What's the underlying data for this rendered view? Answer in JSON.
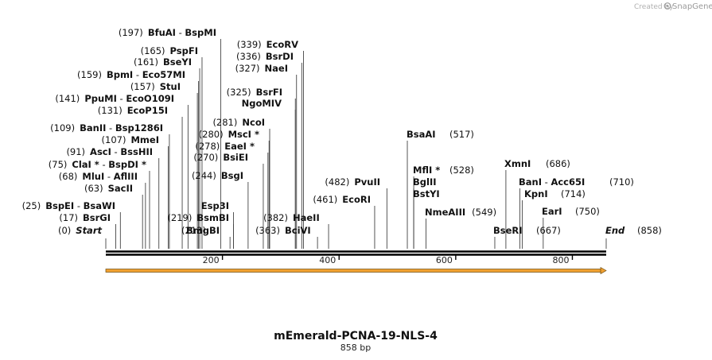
{
  "credit": {
    "prefix": "Created by",
    "brand": "SnapGene"
  },
  "map": {
    "title": "mEmerald-PCNA-19-NLS-4",
    "length_label": "858 bp",
    "length": 858,
    "ticks": [
      {
        "value": 200,
        "label": "200"
      },
      {
        "value": 400,
        "label": "400"
      },
      {
        "value": 600,
        "label": "600"
      },
      {
        "value": 800,
        "label": "800"
      }
    ],
    "feature_color": "#f0a030",
    "features": [
      {
        "name": "feature-arrow",
        "start": 1,
        "end": 858,
        "direction": "forward"
      }
    ]
  },
  "sites": [
    {
      "id": "start",
      "pos": 0,
      "pos_label": "(0)",
      "names": [
        "Start"
      ],
      "star": [
        false
      ],
      "sym": true,
      "side": "left"
    },
    {
      "id": "bsrgi",
      "pos": 17,
      "pos_label": "(17)",
      "names": [
        "BsrGI"
      ],
      "star": [
        false
      ],
      "side": "left"
    },
    {
      "id": "bspei",
      "pos": 25,
      "pos_label": "(25)",
      "names": [
        "BspEI",
        "BsaWI"
      ],
      "star": [
        false,
        false
      ],
      "side": "left"
    },
    {
      "id": "sacii",
      "pos": 63,
      "pos_label": "(63)",
      "names": [
        "SacII"
      ],
      "star": [
        false
      ],
      "side": "left"
    },
    {
      "id": "mlui",
      "pos": 68,
      "pos_label": "(68)",
      "names": [
        "MluI",
        "AflIII"
      ],
      "star": [
        false,
        false
      ],
      "side": "left"
    },
    {
      "id": "clai",
      "pos": 75,
      "pos_label": "(75)",
      "names": [
        "ClaI",
        "BspDI"
      ],
      "star": [
        true,
        true
      ],
      "side": "left"
    },
    {
      "id": "asci",
      "pos": 91,
      "pos_label": "(91)",
      "names": [
        "AscI",
        "BssHII"
      ],
      "star": [
        false,
        false
      ],
      "side": "left"
    },
    {
      "id": "mmei",
      "pos": 107,
      "pos_label": "(107)",
      "names": [
        "MmeI"
      ],
      "star": [
        false
      ],
      "side": "left"
    },
    {
      "id": "banii",
      "pos": 109,
      "pos_label": "(109)",
      "names": [
        "BanII",
        "Bsp1286I"
      ],
      "star": [
        false,
        false
      ],
      "side": "left"
    },
    {
      "id": "ecop15i",
      "pos": 131,
      "pos_label": "(131)",
      "names": [
        "EcoP15I"
      ],
      "star": [
        false
      ],
      "side": "left"
    },
    {
      "id": "ppumi",
      "pos": 141,
      "pos_label": "(141)",
      "names": [
        "PpuMI",
        "EcoO109I"
      ],
      "star": [
        false,
        false
      ],
      "side": "left"
    },
    {
      "id": "stui",
      "pos": 157,
      "pos_label": "(157)",
      "names": [
        "StuI"
      ],
      "star": [
        false
      ],
      "side": "left"
    },
    {
      "id": "bpmi",
      "pos": 159,
      "pos_label": "(159)",
      "names": [
        "BpmI",
        "Eco57MI"
      ],
      "star": [
        false,
        false
      ],
      "side": "left"
    },
    {
      "id": "bseyi",
      "pos": 161,
      "pos_label": "(161)",
      "names": [
        "BseYI"
      ],
      "star": [
        false
      ],
      "side": "left"
    },
    {
      "id": "pspfi",
      "pos": 165,
      "pos_label": "(165)",
      "names": [
        "PspFI"
      ],
      "star": [
        false
      ],
      "side": "left"
    },
    {
      "id": "bfuai",
      "pos": 197,
      "pos_label": "(197)",
      "names": [
        "BfuAI",
        "BspMI"
      ],
      "star": [
        false,
        false
      ],
      "side": "left"
    },
    {
      "id": "bmgbi",
      "pos": 213,
      "pos_label": "(213)",
      "names": [
        "BmgBI"
      ],
      "star": [
        false
      ],
      "side": "right"
    },
    {
      "id": "bsmbi",
      "pos": 219,
      "pos_label": "(219)",
      "names": [
        "BsmBI"
      ],
      "star": [
        false
      ],
      "side": "left"
    },
    {
      "id": "esp3i",
      "pos": 219,
      "pos_label": "",
      "names": [
        "Esp3I"
      ],
      "star": [
        false
      ],
      "side": "left"
    },
    {
      "id": "bsgi",
      "pos": 244,
      "pos_label": "(244)",
      "names": [
        "BsgI"
      ],
      "star": [
        false
      ],
      "side": "left"
    },
    {
      "id": "bsiei",
      "pos": 270,
      "pos_label": "(270)",
      "names": [
        "BsiEI"
      ],
      "star": [
        false
      ],
      "side": "left"
    },
    {
      "id": "eaei",
      "pos": 278,
      "pos_label": "(278)",
      "names": [
        "EaeI"
      ],
      "star": [
        true
      ],
      "side": "left"
    },
    {
      "id": "msci",
      "pos": 280,
      "pos_label": "(280)",
      "names": [
        "MscI"
      ],
      "star": [
        true
      ],
      "side": "left"
    },
    {
      "id": "ncoi",
      "pos": 281,
      "pos_label": "(281)",
      "names": [
        "NcoI"
      ],
      "star": [
        false
      ],
      "side": "left"
    },
    {
      "id": "ngomiv",
      "pos": 325,
      "pos_label": "",
      "names": [
        "NgoMIV"
      ],
      "star": [
        false
      ],
      "side": "left"
    },
    {
      "id": "bsrfi",
      "pos": 325,
      "pos_label": "(325)",
      "names": [
        "BsrFI"
      ],
      "star": [
        false
      ],
      "side": "left"
    },
    {
      "id": "naei",
      "pos": 327,
      "pos_label": "(327)",
      "names": [
        "NaeI"
      ],
      "star": [
        false
      ],
      "side": "left"
    },
    {
      "id": "bsrdi",
      "pos": 336,
      "pos_label": "(336)",
      "names": [
        "BsrDI"
      ],
      "star": [
        false
      ],
      "side": "left"
    },
    {
      "id": "ecorv",
      "pos": 339,
      "pos_label": "(339)",
      "names": [
        "EcoRV"
      ],
      "star": [
        false
      ],
      "side": "left"
    },
    {
      "id": "bcivi",
      "pos": 363,
      "pos_label": "(363)",
      "names": [
        "BciVI"
      ],
      "star": [
        false
      ],
      "side": "right"
    },
    {
      "id": "haeii",
      "pos": 382,
      "pos_label": "(382)",
      "names": [
        "HaeII"
      ],
      "star": [
        false
      ],
      "side": "right"
    },
    {
      "id": "ecori",
      "pos": 461,
      "pos_label": "(461)",
      "names": [
        "EcoRI"
      ],
      "star": [
        false
      ],
      "side": "left"
    },
    {
      "id": "pvuii",
      "pos": 482,
      "pos_label": "(482)",
      "names": [
        "PvuII"
      ],
      "star": [
        false
      ],
      "side": "left"
    },
    {
      "id": "bsaai",
      "pos": 517,
      "pos_label": "(517)",
      "names": [
        "BsaAI"
      ],
      "star": [
        false
      ],
      "side": "right"
    },
    {
      "id": "mfli",
      "pos": 528,
      "pos_label": "(528)",
      "names": [
        "MflI"
      ],
      "star": [
        true
      ],
      "side": "right"
    },
    {
      "id": "bglii",
      "pos": 528,
      "pos_label": "",
      "names": [
        "BglII"
      ],
      "star": [
        false
      ],
      "side": "right"
    },
    {
      "id": "bstyi",
      "pos": 528,
      "pos_label": "",
      "names": [
        "BstYI"
      ],
      "star": [
        false
      ],
      "side": "right"
    },
    {
      "id": "nmeaiii",
      "pos": 549,
      "pos_label": "(549)",
      "names": [
        "NmeAIII"
      ],
      "star": [
        false
      ],
      "side": "right"
    },
    {
      "id": "bseri",
      "pos": 667,
      "pos_label": "(667)",
      "names": [
        "BseRI"
      ],
      "star": [
        false
      ],
      "side": "right"
    },
    {
      "id": "xmni",
      "pos": 686,
      "pos_label": "(686)",
      "names": [
        "XmnI"
      ],
      "star": [
        false
      ],
      "side": "right"
    },
    {
      "id": "bani",
      "pos": 710,
      "pos_label": "(710)",
      "names": [
        "BanI",
        "Acc65I"
      ],
      "star": [
        false,
        false
      ],
      "side": "right"
    },
    {
      "id": "kpni",
      "pos": 714,
      "pos_label": "(714)",
      "names": [
        "KpnI"
      ],
      "star": [
        false
      ],
      "side": "right"
    },
    {
      "id": "eari",
      "pos": 750,
      "pos_label": "(750)",
      "names": [
        "EarI"
      ],
      "star": [
        false
      ],
      "side": "right"
    },
    {
      "id": "end",
      "pos": 858,
      "pos_label": "(858)",
      "names": [
        "End"
      ],
      "star": [
        false
      ],
      "sym": true,
      "side": "right"
    }
  ]
}
